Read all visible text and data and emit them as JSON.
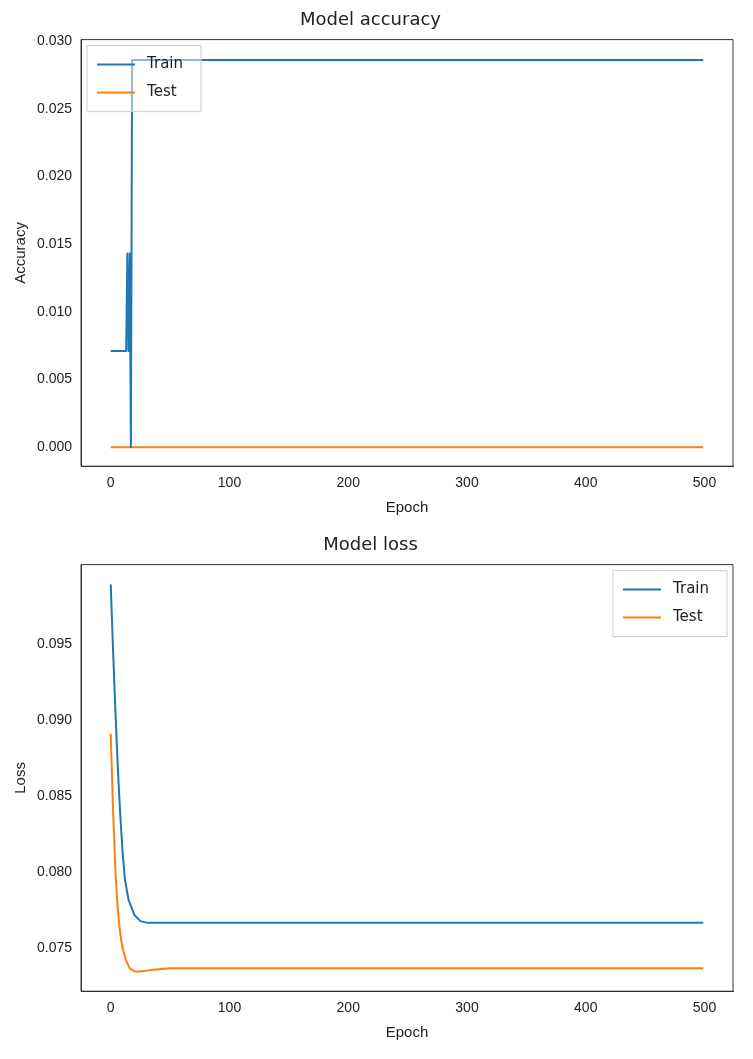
{
  "chart_data": [
    {
      "type": "line",
      "title": "Model accuracy",
      "xlabel": "Epoch",
      "ylabel": "Accuracy",
      "xlim": [
        -25,
        524
      ],
      "xticks": [
        0,
        100,
        200,
        300,
        400,
        500
      ],
      "ylim": [
        -0.0014,
        0.0301
      ],
      "yticks": [
        {
          "value": 0,
          "label": "0.000"
        },
        {
          "value": 0.005,
          "label": "0.005"
        },
        {
          "value": 0.01,
          "label": "0.010"
        },
        {
          "value": 0.015,
          "label": "0.015"
        },
        {
          "value": 0.02,
          "label": "0.020"
        },
        {
          "value": 0.025,
          "label": "0.025"
        },
        {
          "value": 0.03,
          "label": "0.030"
        }
      ],
      "legend": "top left",
      "grid": false,
      "marker": "none",
      "series": [
        {
          "name": "Train",
          "color": "#1f77b4",
          "x": [
            0,
            13,
            14,
            15,
            16,
            17,
            18,
            499
          ],
          "values": [
            0.0071,
            0.0071,
            0.0143,
            0.0071,
            0.0143,
            0,
            0.0286,
            0.0286
          ]
        },
        {
          "name": "Test",
          "color": "#ff7f0e",
          "x": [
            0,
            499
          ],
          "values": [
            0,
            0
          ]
        }
      ]
    },
    {
      "type": "line",
      "title": "Model loss",
      "xlabel": "Epoch",
      "ylabel": "Loss",
      "xlim": [
        -25,
        524
      ],
      "xticks": [
        0,
        100,
        200,
        300,
        400,
        500
      ],
      "ylim": [
        0.0722,
        0.1002
      ],
      "yticks": [
        {
          "value": 0.075,
          "label": "0.075"
        },
        {
          "value": 0.08,
          "label": "0.080"
        },
        {
          "value": 0.085,
          "label": "0.085"
        },
        {
          "value": 0.09,
          "label": "0.090"
        },
        {
          "value": 0.095,
          "label": "0.095"
        }
      ],
      "legend": "top right",
      "grid": false,
      "marker": "none",
      "series": [
        {
          "name": "Train",
          "color": "#1f77b4",
          "x": [
            0,
            2,
            4,
            6,
            8,
            10,
            12,
            15,
            20,
            25,
            30,
            499
          ],
          "values": [
            0.0989,
            0.0945,
            0.0905,
            0.0868,
            0.0838,
            0.0813,
            0.0795,
            0.0782,
            0.0772,
            0.0768,
            0.0767,
            0.0767
          ]
        },
        {
          "name": "Test",
          "color": "#ff7f0e",
          "x": [
            0,
            2,
            4,
            6,
            8,
            10,
            13,
            16,
            20,
            25,
            35,
            50,
            499
          ],
          "values": [
            0.0891,
            0.084,
            0.08,
            0.0775,
            0.076,
            0.075,
            0.0742,
            0.0737,
            0.0735,
            0.0735,
            0.0736,
            0.0737,
            0.0737
          ]
        }
      ]
    }
  ]
}
